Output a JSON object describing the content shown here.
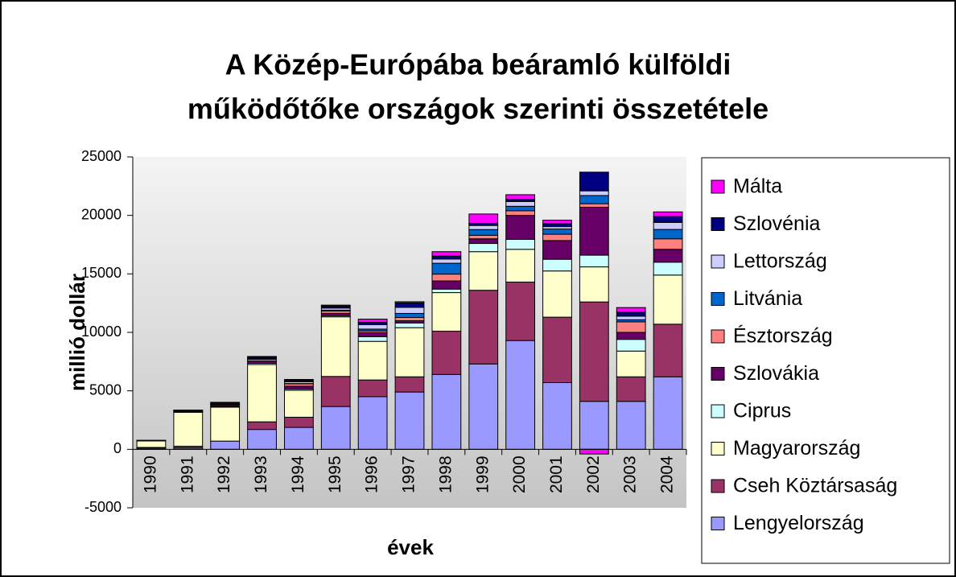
{
  "chart_data": {
    "type": "stacked_bar",
    "title": [
      "A Közép-Európába beáramló külföldi",
      "működőtőke országok szerinti összetétele"
    ],
    "x_label": "évek",
    "y_label": "millió dollár",
    "categories": [
      "1990",
      "1991",
      "1992",
      "1993",
      "1994",
      "1995",
      "1996",
      "1997",
      "1998",
      "1999",
      "2000",
      "2001",
      "2002",
      "2003",
      "2004"
    ],
    "ylim": [
      -5000,
      25000
    ],
    "yticks": [
      -5000,
      0,
      5000,
      10000,
      15000,
      20000,
      25000
    ],
    "grid": false,
    "legend": "right",
    "series": [
      {
        "name": "Lengyelország",
        "color": "#9999ff",
        "values": [
          89,
          117,
          700,
          1700,
          1875,
          3660,
          4500,
          4900,
          6400,
          7300,
          9300,
          5700,
          4100,
          4100,
          6200
        ]
      },
      {
        "name": "Cseh Köztársaság",
        "color": "#993366",
        "values": [
          72,
          150,
          0,
          650,
          870,
          2570,
          1430,
          1300,
          3700,
          6300,
          5000,
          5600,
          8500,
          2100,
          4500
        ]
      },
      {
        "name": "Magyarország",
        "color": "#ffffcc",
        "values": [
          554,
          2900,
          2900,
          4900,
          2300,
          5100,
          3300,
          4200,
          3300,
          3300,
          2800,
          3950,
          3000,
          2200,
          4200
        ]
      },
      {
        "name": "Ciprus",
        "color": "#ccffff",
        "values": [
          30,
          50,
          50,
          100,
          100,
          100,
          400,
          400,
          300,
          700,
          850,
          1000,
          1000,
          1000,
          1100
        ]
      },
      {
        "name": "Szlovákia",
        "color": "#660066",
        "values": [
          20,
          50,
          100,
          200,
          250,
          200,
          350,
          200,
          700,
          400,
          2050,
          1600,
          4100,
          600,
          1100
        ]
      },
      {
        "name": "Észtország",
        "color": "#ff8080",
        "values": [
          0,
          20,
          80,
          150,
          200,
          200,
          150,
          270,
          580,
          300,
          400,
          540,
          300,
          900,
          900
        ]
      },
      {
        "name": "Litvánia",
        "color": "#0066cc",
        "values": [
          0,
          10,
          10,
          30,
          30,
          70,
          150,
          350,
          930,
          490,
          380,
          450,
          700,
          180,
          800
        ]
      },
      {
        "name": "Lettország",
        "color": "#ccccff",
        "values": [
          0,
          20,
          30,
          50,
          150,
          180,
          380,
          520,
          360,
          350,
          410,
          200,
          400,
          300,
          600
        ]
      },
      {
        "name": "Szlovénia",
        "color": "#000080",
        "values": [
          4,
          40,
          111,
          100,
          130,
          170,
          190,
          380,
          250,
          180,
          180,
          250,
          1600,
          340,
          500
        ]
      },
      {
        "name": "Málta",
        "color": "#ff00ff",
        "values": [
          0,
          0,
          40,
          60,
          70,
          80,
          280,
          100,
          380,
          800,
          400,
          300,
          -400,
          400,
          400
        ]
      }
    ]
  }
}
